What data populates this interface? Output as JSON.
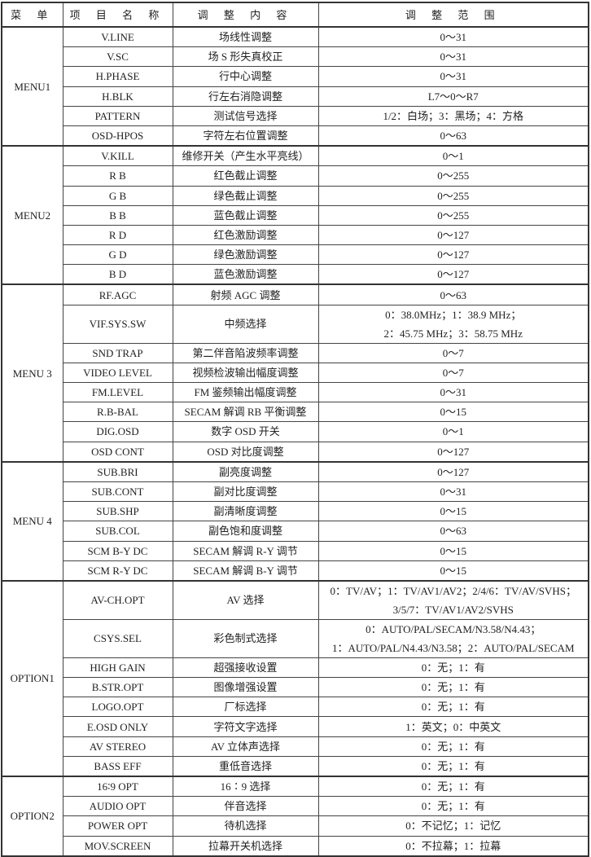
{
  "headers": [
    "菜 单",
    "项 目 名 称",
    "调 整 内 容",
    "调 整 范 围"
  ],
  "groups": [
    {
      "menu": "MENU1",
      "rows": [
        {
          "item": "V.LINE",
          "content": "场线性调整",
          "range": "0～31"
        },
        {
          "item": "V.SC",
          "content": "场 S 形失真校正",
          "range": "0～31"
        },
        {
          "item": "H.PHASE",
          "content": "行中心调整",
          "range": "0～31"
        },
        {
          "item": "H.BLK",
          "content": "行左右消隐调整",
          "range": "L7～0～R7"
        },
        {
          "item": "PATTERN",
          "content": "测试信号选择",
          "range": "1/2：白场；3：黑场；4：方格"
        },
        {
          "item": "OSD-HPOS",
          "content": "字符左右位置调整",
          "range": "0～63"
        }
      ]
    },
    {
      "menu": "MENU2",
      "rows": [
        {
          "item": "V.KILL",
          "content": "维修开关（产生水平亮线）",
          "range": "0～1"
        },
        {
          "item": "R B",
          "content": "红色截止调整",
          "range": "0～255"
        },
        {
          "item": "G B",
          "content": "绿色截止调整",
          "range": "0～255"
        },
        {
          "item": "B B",
          "content": "蓝色截止调整",
          "range": "0～255"
        },
        {
          "item": "R D",
          "content": "红色激励调整",
          "range": "0～127"
        },
        {
          "item": "G D",
          "content": "绿色激励调整",
          "range": "0～127"
        },
        {
          "item": "B D",
          "content": "蓝色激励调整",
          "range": "0～127"
        }
      ]
    },
    {
      "menu": "MENU 3",
      "rows": [
        {
          "item": "RF.AGC",
          "content": "射频 AGC 调整",
          "range": "0～63"
        },
        {
          "item": "VIF.SYS.SW",
          "content": "中频选择",
          "range": "0：38.0MHz；1：38.9 MHz；",
          "range2": "2：45.75 MHz；3：58.75 MHz"
        },
        {
          "item": "SND TRAP",
          "content": "第二伴音陷波频率调整",
          "range": "0～7"
        },
        {
          "item": "VIDEO LEVEL",
          "content": "视频检波输出幅度调整",
          "range": "0～7"
        },
        {
          "item": "FM.LEVEL",
          "content": "FM 鉴频输出幅度调整",
          "range": "0～31"
        },
        {
          "item": "R.B-BAL",
          "content": "SECAM 解调 RB 平衡调整",
          "range": "0～15"
        },
        {
          "item": "DIG.OSD",
          "content": "数字 OSD 开关",
          "range": "0～1"
        },
        {
          "item": "OSD CONT",
          "content": "OSD 对比度调整",
          "range": "0～127"
        }
      ]
    },
    {
      "menu": "MENU 4",
      "rows": [
        {
          "item": "SUB.BRI",
          "content": "副亮度调整",
          "range": "0～127"
        },
        {
          "item": "SUB.CONT",
          "content": "副对比度调整",
          "range": "0～31"
        },
        {
          "item": "SUB.SHP",
          "content": "副清晰度调整",
          "range": "0～15"
        },
        {
          "item": "SUB.COL",
          "content": "副色饱和度调整",
          "range": "0～63"
        },
        {
          "item": "SCM B-Y DC",
          "content": "SECAM 解调 R-Y 调节",
          "range": "0～15"
        },
        {
          "item": "SCM R-Y DC",
          "content": "SECAM 解调 B-Y 调节",
          "range": "0～15"
        }
      ]
    },
    {
      "menu": "OPTION1",
      "rows": [
        {
          "item": "AV-CH.OPT",
          "content": "AV 选择",
          "range": "0：TV/AV；1：TV/AV1/AV2；2/4/6：TV/AV/SVHS；",
          "range2": "3/5/7：TV/AV1/AV2/SVHS"
        },
        {
          "item": "CSYS.SEL",
          "content": "彩色制式选择",
          "range": "0：AUTO/PAL/SECAM/N3.58/N4.43；",
          "range2": "1：AUTO/PAL/N4.43/N3.58；2：AUTO/PAL/SECAM"
        },
        {
          "item": "HIGH GAIN",
          "content": "超强接收设置",
          "range": "0：无；1：有"
        },
        {
          "item": "B.STR.OPT",
          "content": "图像增强设置",
          "range": "0：无；1：有"
        },
        {
          "item": "LOGO.OPT",
          "content": "厂标选择",
          "range": "0：无；1：有"
        },
        {
          "item": "E.OSD ONLY",
          "content": "字符文字选择",
          "range": "1：英文；0：中英文"
        },
        {
          "item": "AV STEREO",
          "content": "AV 立体声选择",
          "range": "0：无；1：有"
        },
        {
          "item": "BASS EFF",
          "content": "重低音选择",
          "range": "0：无；1：有"
        }
      ]
    },
    {
      "menu": "OPTION2",
      "rows": [
        {
          "item": "16∶9 OPT",
          "content": "16∶9 选择",
          "range": "0：无；1：有"
        },
        {
          "item": "AUDIO OPT",
          "content": "伴音选择",
          "range": "0：无；1：有"
        },
        {
          "item": "POWER OPT",
          "content": "待机选择",
          "range": "0：不记忆；1：记忆"
        },
        {
          "item": "MOV.SCREEN",
          "content": "拉幕开关机选择",
          "range": "0：不拉幕；1：拉幕"
        }
      ]
    }
  ]
}
